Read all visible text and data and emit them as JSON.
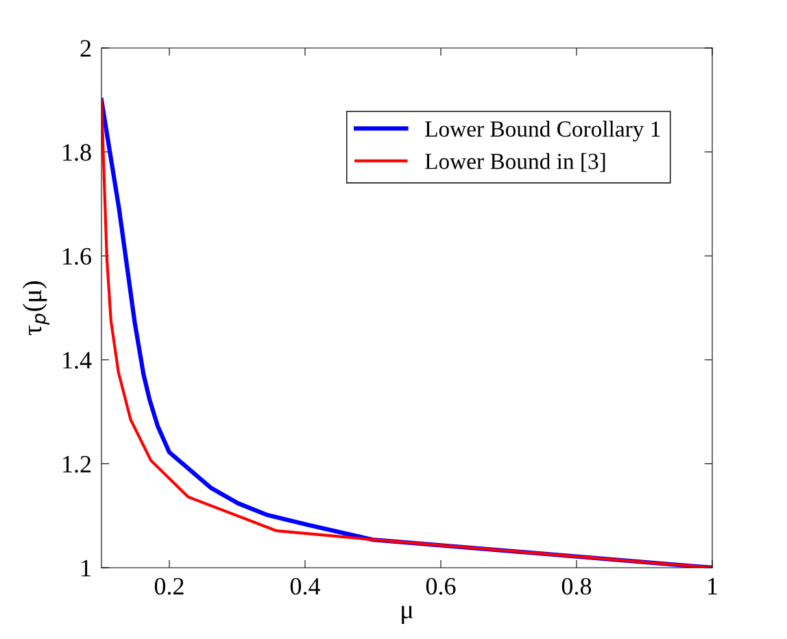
{
  "chart_data": {
    "type": "line",
    "xlabel": "μ",
    "ylabel": "τ$_{p}$(μ)",
    "xlim": [
      0.1,
      1
    ],
    "xticks": [
      0.2,
      0.4,
      0.6,
      0.8,
      1
    ],
    "ylim": [
      1,
      2
    ],
    "yticks": [
      1,
      1.2,
      1.4,
      1.6,
      1.8,
      2
    ],
    "grid": false,
    "legend": "top right",
    "marker": "none",
    "line_style": "solid",
    "series": [
      {
        "name": "Lower Bound Corollary 1",
        "color": "#0000ff",
        "x": [
          0.1,
          0.126,
          0.149,
          0.162,
          0.171,
          0.183,
          0.2,
          0.262,
          0.301,
          0.343,
          0.402,
          0.499,
          1
        ],
        "values": [
          1.9,
          1.69,
          1.472,
          1.372,
          1.323,
          1.272,
          1.222,
          1.153,
          1.124,
          1.102,
          1.083,
          1.054,
          1
        ]
      },
      {
        "name": "Lower Bound in [3]",
        "color": "#ff0000",
        "x": [
          0.1,
          0.108,
          0.114,
          0.125,
          0.143,
          0.173,
          0.228,
          0.358,
          0.5,
          1
        ],
        "values": [
          1.9,
          1.594,
          1.475,
          1.376,
          1.285,
          1.206,
          1.136,
          1.071,
          1.054,
          1
        ]
      }
    ]
  }
}
